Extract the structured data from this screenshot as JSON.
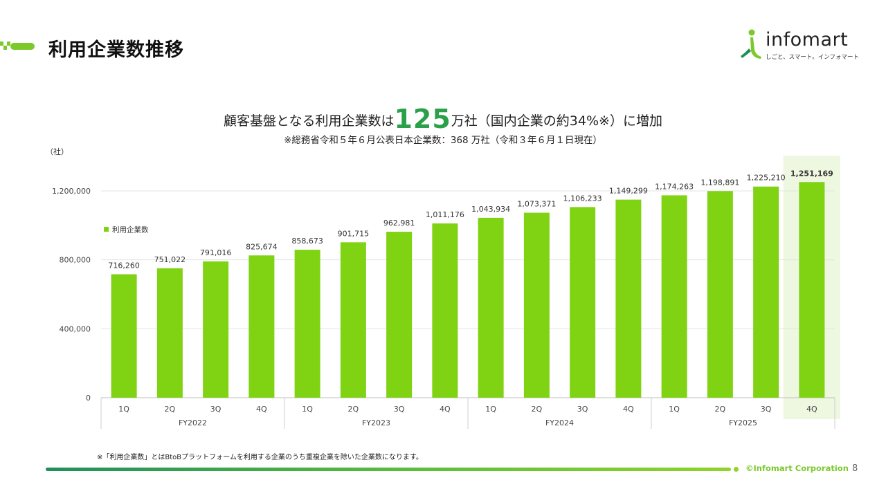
{
  "page": {
    "title": "利用企業数推移",
    "headline_pre": "顧客基盤となる利用企業数は",
    "headline_big": "125",
    "headline_post": "万社（国内企業の約34%※）に増加",
    "subline": "※総務省令和５年６月公表日本企業数：368 万社（令和３年６月１日現在）",
    "footnote": "※「利用企業数」とはBtoBプラットフォームを利用する企業のうち重複企業を除いた企業数になります。",
    "copyright": "©Infomart Corporation",
    "page_number": "8"
  },
  "logo": {
    "wordmark": "infomart",
    "tagline": "しごと、スマート。インフォマート"
  },
  "colors": {
    "bar": "#7fd313",
    "accent_green": "#2aa04a",
    "highlight_bg": "#eef7e0"
  },
  "chart_data": {
    "type": "bar",
    "unit_label": "（社）",
    "categories": [
      "1Q",
      "2Q",
      "3Q",
      "4Q",
      "1Q",
      "2Q",
      "3Q",
      "4Q",
      "1Q",
      "2Q",
      "3Q",
      "4Q",
      "1Q",
      "2Q",
      "3Q",
      "4Q"
    ],
    "groups": [
      {
        "label": "FY2022",
        "count": 4
      },
      {
        "label": "FY2023",
        "count": 4
      },
      {
        "label": "FY2024",
        "count": 4
      },
      {
        "label": "FY2025",
        "count": 4
      }
    ],
    "series": [
      {
        "name": "利用企業数",
        "values": [
          716260,
          751022,
          791016,
          825674,
          858673,
          901715,
          962981,
          1011176,
          1043934,
          1073371,
          1106233,
          1149299,
          1174263,
          1198891,
          1225210,
          1251169
        ],
        "labels": [
          "716,260",
          "751,022",
          "791,016",
          "825,674",
          "858,673",
          "901,715",
          "962,981",
          "1,011,176",
          "1,043,934",
          "1,073,371",
          "1,106,233",
          "1,149,299",
          "1,174,263",
          "1,198,891",
          "1,225,210",
          "1,251,169"
        ]
      }
    ],
    "yticks": [
      0,
      400000,
      800000,
      1200000
    ],
    "ytick_labels": [
      "0",
      "400,000",
      "800,000",
      "1,200,000"
    ],
    "ylim": [
      0,
      1200000
    ],
    "grid": true,
    "legend": "left",
    "highlight_index": 15
  }
}
